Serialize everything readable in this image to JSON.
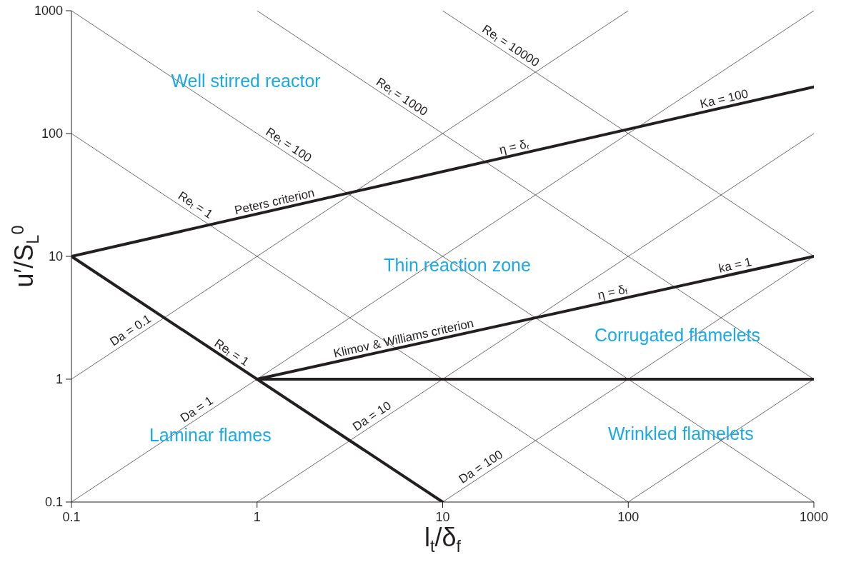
{
  "chart_data": {
    "type": "line",
    "log": "xy",
    "xlabel": "l$_{t}$/δ$_{f}$",
    "ylabel": "u′/S$_{L}$$^{0}$",
    "xlim": [
      0.1,
      1000
    ],
    "ylim": [
      0.1,
      1000
    ],
    "xticks": [
      0.1,
      1,
      10,
      100,
      1000
    ],
    "yticks": [
      0.1,
      1,
      10,
      100,
      1000
    ],
    "marker": "none",
    "line_style": "solid",
    "series": [
      {
        "type": "line",
        "color": "#58595b",
        "x": [
          0.1,
          1000
        ],
        "values": [
          1000,
          0.1
        ]
      },
      {
        "type": "line",
        "color": "#58595b",
        "x": [
          0.1,
          100
        ],
        "values": [
          100,
          0.1
        ]
      },
      {
        "type": "line",
        "color": "#58595b",
        "x": [
          1,
          1000
        ],
        "values": [
          1000,
          1
        ]
      },
      {
        "type": "line",
        "color": "#58595b",
        "x": [
          10,
          1000
        ],
        "values": [
          1000,
          10
        ]
      },
      {
        "type": "line",
        "color": "#58595b",
        "x": [
          0.1,
          100
        ],
        "values": [
          1,
          1000
        ]
      },
      {
        "type": "line",
        "color": "#58595b",
        "x": [
          0.1,
          1000
        ],
        "values": [
          0.1,
          1000
        ]
      },
      {
        "type": "line",
        "color": "#58595b",
        "x": [
          1,
          1000
        ],
        "values": [
          0.1,
          100
        ]
      },
      {
        "type": "line",
        "color": "#58595b",
        "x": [
          10,
          1000
        ],
        "values": [
          0.1,
          10
        ]
      },
      {
        "type": "line",
        "color": "#58595b",
        "x": [
          100,
          1000
        ],
        "values": [
          0.1,
          1
        ]
      },
      {
        "type": "line",
        "color": "#231f20",
        "x": [
          0.1,
          1000
        ],
        "values": [
          10,
          240
        ]
      },
      {
        "type": "line",
        "color": "#231f20",
        "x": [
          0.1,
          10
        ],
        "values": [
          10,
          0.1
        ]
      },
      {
        "type": "line",
        "color": "#231f20",
        "x": [
          1,
          1000
        ],
        "values": [
          1,
          10
        ]
      },
      {
        "type": "line",
        "color": "#231f20",
        "x": [
          1,
          1000
        ],
        "values": [
          1,
          1
        ]
      }
    ],
    "annotations": [
      {
        "text": "Re$_{t}$ = 10000",
        "x": 22,
        "y": 455
      },
      {
        "text": "Re$_{t}$ = 1000",
        "x": 5.7,
        "y": 175
      },
      {
        "text": "Re$_{t}$ = 100",
        "x": 1.4,
        "y": 71
      },
      {
        "text": "Re$_{t}$ = 1",
        "x": 0.44,
        "y": 23
      },
      {
        "text": "Peters criterion",
        "x": 1.27,
        "y": 24
      },
      {
        "text": "η = δ$_{r}$",
        "x": 24.8,
        "y": 67
      },
      {
        "text": "Ka = 100",
        "x": 336,
        "y": 165
      },
      {
        "text": "η = δ$_{f}$",
        "x": 84,
        "y": 4.4
      },
      {
        "text": "ka = 1",
        "x": 385,
        "y": 7.3
      },
      {
        "text": "Klimov & Williams criterion",
        "x": 6.3,
        "y": 1.85
      },
      {
        "text": "Re$_{t}$ = 1",
        "x": 0.69,
        "y": 1.45
      },
      {
        "text": "Da = 0.1",
        "x": 0.22,
        "y": 2.2
      },
      {
        "text": "Da = 1",
        "x": 0.5,
        "y": 0.5
      },
      {
        "text": "Da = 10",
        "x": 4.4,
        "y": 0.44
      },
      {
        "text": "Da = 100",
        "x": 17,
        "y": 0.17
      },
      "Well stirred reactor",
      "Thin reaction zone",
      "Corrugated flamelets",
      "Laminar flames",
      "Wrinkled flamelets"
    ]
  }
}
